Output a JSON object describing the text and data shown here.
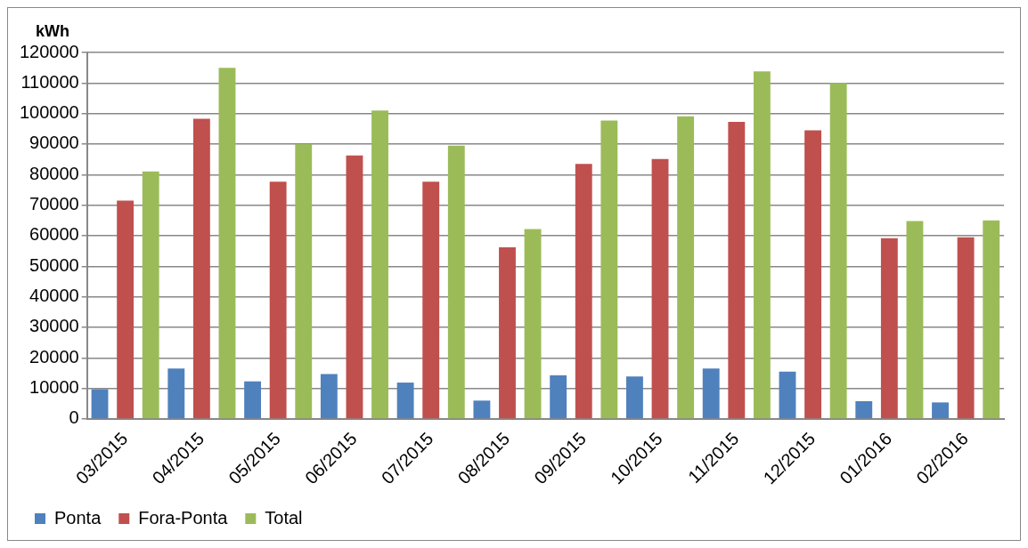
{
  "chart_data": {
    "type": "bar",
    "ylabel": "kWh",
    "categories": [
      "03/2015",
      "04/2015",
      "05/2015",
      "06/2015",
      "07/2015",
      "08/2015",
      "09/2015",
      "10/2015",
      "11/2015",
      "12/2015",
      "01/2016",
      "02/2016"
    ],
    "series": [
      {
        "name": "Ponta",
        "color": "#4f81bd",
        "values": [
          9700,
          16500,
          12300,
          14700,
          11900,
          6000,
          14300,
          13900,
          16500,
          15500,
          5800,
          5400
        ]
      },
      {
        "name": "Fora-Ponta",
        "color": "#c0504d",
        "values": [
          71500,
          98300,
          77700,
          86300,
          77700,
          56200,
          83500,
          85100,
          97300,
          94500,
          59200,
          59500
        ]
      },
      {
        "name": "Total",
        "color": "#9bbb59",
        "values": [
          81000,
          115000,
          90000,
          101000,
          89500,
          62200,
          97700,
          99100,
          113800,
          110000,
          64800,
          65000
        ]
      }
    ],
    "ylim": [
      0,
      120000
    ],
    "yticks": [
      0,
      10000,
      20000,
      30000,
      40000,
      50000,
      60000,
      70000,
      80000,
      90000,
      100000,
      110000,
      120000
    ],
    "grid": "y",
    "legend": "bottom left"
  }
}
